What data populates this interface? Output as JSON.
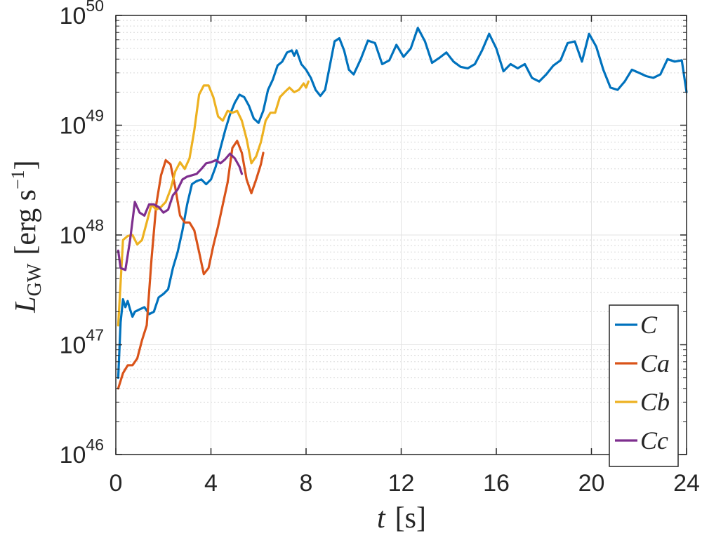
{
  "chart_data": {
    "type": "line",
    "title": "",
    "xlabel": {
      "var": "t",
      "unit": "[s]"
    },
    "ylabel": {
      "var": "L",
      "sub": "GW",
      "unit_open": "[erg s",
      "unit_exp": "−1",
      "unit_close": "]"
    },
    "xlim": [
      0,
      24
    ],
    "ylim": [
      1e+46,
      1e+50
    ],
    "yscale": "log",
    "grid": true,
    "minor_grid": true,
    "legend_position": "bottom-right",
    "x_ticks": [
      "0",
      "4",
      "8",
      "12",
      "16",
      "20",
      "24"
    ],
    "y_ticks": [
      {
        "base": "10",
        "exp": "50"
      },
      {
        "base": "10",
        "exp": "49"
      },
      {
        "base": "10",
        "exp": "48"
      },
      {
        "base": "10",
        "exp": "47"
      },
      {
        "base": "10",
        "exp": "46"
      }
    ],
    "series": [
      {
        "name": "C",
        "color": "#0072BD",
        "points": [
          [
            0.1,
            5e+46
          ],
          [
            0.2,
            1.6e+47
          ],
          [
            0.3,
            2.6e+47
          ],
          [
            0.4,
            2.2e+47
          ],
          [
            0.5,
            2.5e+47
          ],
          [
            0.6,
            2.1e+47
          ],
          [
            0.7,
            1.8e+47
          ],
          [
            0.8,
            2e+47
          ],
          [
            1.0,
            2.1e+47
          ],
          [
            1.2,
            2.2e+47
          ],
          [
            1.4,
            1.9e+47
          ],
          [
            1.6,
            2e+47
          ],
          [
            1.8,
            2.7e+47
          ],
          [
            2.0,
            2.9e+47
          ],
          [
            2.2,
            3.2e+47
          ],
          [
            2.4,
            5e+47
          ],
          [
            2.6,
            7e+47
          ],
          [
            2.8,
            1.1e+48
          ],
          [
            3.0,
            1.9e+48
          ],
          [
            3.2,
            2.9e+48
          ],
          [
            3.4,
            3.1e+48
          ],
          [
            3.6,
            3.2e+48
          ],
          [
            3.8,
            2.9e+48
          ],
          [
            4.0,
            3.2e+48
          ],
          [
            4.2,
            4.2e+48
          ],
          [
            4.4,
            6.2e+48
          ],
          [
            4.6,
            9e+48
          ],
          [
            4.8,
            1.25e+49
          ],
          [
            5.0,
            1.6e+49
          ],
          [
            5.2,
            1.9e+49
          ],
          [
            5.4,
            1.8e+49
          ],
          [
            5.6,
            1.5e+49
          ],
          [
            5.8,
            1.15e+49
          ],
          [
            6.0,
            1.05e+49
          ],
          [
            6.2,
            1.35e+49
          ],
          [
            6.4,
            2.1e+49
          ],
          [
            6.6,
            2.6e+49
          ],
          [
            6.8,
            3.5e+49
          ],
          [
            7.0,
            3.8e+49
          ],
          [
            7.2,
            4.6e+49
          ],
          [
            7.4,
            4.8e+49
          ],
          [
            7.5,
            4.3e+49
          ],
          [
            7.6,
            4.8e+49
          ],
          [
            7.8,
            3.6e+49
          ],
          [
            8.0,
            3.2e+49
          ],
          [
            8.2,
            2.7e+49
          ],
          [
            8.4,
            2.1e+49
          ],
          [
            8.6,
            1.85e+49
          ],
          [
            8.8,
            2.1e+49
          ],
          [
            9.0,
            3.5e+49
          ],
          [
            9.2,
            5.8e+49
          ],
          [
            9.4,
            6.2e+49
          ],
          [
            9.6,
            4.8e+49
          ],
          [
            9.8,
            3.2e+49
          ],
          [
            10.0,
            2.9e+49
          ],
          [
            10.3,
            4e+49
          ],
          [
            10.6,
            5.9e+49
          ],
          [
            10.9,
            5.6e+49
          ],
          [
            11.2,
            3.6e+49
          ],
          [
            11.5,
            3.9e+49
          ],
          [
            11.8,
            5.4e+49
          ],
          [
            12.1,
            4.2e+49
          ],
          [
            12.4,
            5e+49
          ],
          [
            12.7,
            7.7e+49
          ],
          [
            13.0,
            5.8e+49
          ],
          [
            13.3,
            3.7e+49
          ],
          [
            13.6,
            4.1e+49
          ],
          [
            13.9,
            4.6e+49
          ],
          [
            14.2,
            3.8e+49
          ],
          [
            14.5,
            3.4e+49
          ],
          [
            14.8,
            3.3e+49
          ],
          [
            15.1,
            3.6e+49
          ],
          [
            15.4,
            4.8e+49
          ],
          [
            15.7,
            6.8e+49
          ],
          [
            16.0,
            5e+49
          ],
          [
            16.3,
            3.1e+49
          ],
          [
            16.6,
            3.6e+49
          ],
          [
            16.9,
            3.3e+49
          ],
          [
            17.2,
            3.6e+49
          ],
          [
            17.5,
            2.7e+49
          ],
          [
            17.8,
            2.5e+49
          ],
          [
            18.1,
            2.9e+49
          ],
          [
            18.4,
            3.5e+49
          ],
          [
            18.7,
            3.9e+49
          ],
          [
            19.0,
            5.6e+49
          ],
          [
            19.3,
            5.8e+49
          ],
          [
            19.6,
            3.8e+49
          ],
          [
            19.9,
            6.8e+49
          ],
          [
            20.2,
            5.2e+49
          ],
          [
            20.5,
            3.2e+49
          ],
          [
            20.8,
            2.2e+49
          ],
          [
            21.1,
            2.1e+49
          ],
          [
            21.4,
            2.5e+49
          ],
          [
            21.7,
            3.2e+49
          ],
          [
            22.0,
            3e+49
          ],
          [
            22.3,
            2.8e+49
          ],
          [
            22.6,
            2.7e+49
          ],
          [
            22.9,
            2.9e+49
          ],
          [
            23.2,
            4e+49
          ],
          [
            23.5,
            3.8e+49
          ],
          [
            23.8,
            3.9e+49
          ],
          [
            24.0,
            2e+49
          ]
        ]
      },
      {
        "name": "Ca",
        "color": "#D95319",
        "points": [
          [
            0.1,
            4e+46
          ],
          [
            0.3,
            5.5e+46
          ],
          [
            0.5,
            6.5e+46
          ],
          [
            0.7,
            6.5e+46
          ],
          [
            0.9,
            7.5e+46
          ],
          [
            1.1,
            1.1e+47
          ],
          [
            1.3,
            1.5e+47
          ],
          [
            1.5,
            6e+47
          ],
          [
            1.7,
            1.9e+48
          ],
          [
            1.9,
            3.5e+48
          ],
          [
            2.1,
            4.8e+48
          ],
          [
            2.3,
            4.4e+48
          ],
          [
            2.5,
            2.7e+48
          ],
          [
            2.7,
            1.5e+48
          ],
          [
            2.9,
            1.3e+48
          ],
          [
            3.1,
            1.3e+48
          ],
          [
            3.3,
            1.1e+48
          ],
          [
            3.5,
            7e+47
          ],
          [
            3.7,
            4.4e+47
          ],
          [
            3.9,
            5e+47
          ],
          [
            4.1,
            8e+47
          ],
          [
            4.3,
            1.2e+48
          ],
          [
            4.5,
            1.9e+48
          ],
          [
            4.7,
            3e+48
          ],
          [
            4.9,
            6.2e+48
          ],
          [
            5.1,
            7.2e+48
          ],
          [
            5.3,
            5.6e+48
          ],
          [
            5.5,
            3.2e+48
          ],
          [
            5.7,
            2.4e+48
          ],
          [
            5.9,
            3.2e+48
          ],
          [
            6.1,
            4.4e+48
          ],
          [
            6.2,
            5.6e+48
          ]
        ]
      },
      {
        "name": "Cb",
        "color": "#EDB120",
        "points": [
          [
            0.1,
            1.5e+47
          ],
          [
            0.3,
            9e+47
          ],
          [
            0.5,
            9.8e+47
          ],
          [
            0.7,
            1e+48
          ],
          [
            0.9,
            8.2e+47
          ],
          [
            1.1,
            9e+47
          ],
          [
            1.3,
            1.3e+48
          ],
          [
            1.5,
            1.9e+48
          ],
          [
            1.7,
            1.7e+48
          ],
          [
            1.9,
            1.8e+48
          ],
          [
            2.1,
            2e+48
          ],
          [
            2.3,
            2.6e+48
          ],
          [
            2.5,
            3.8e+48
          ],
          [
            2.7,
            4.6e+48
          ],
          [
            2.9,
            4e+48
          ],
          [
            3.1,
            5e+48
          ],
          [
            3.3,
            9e+48
          ],
          [
            3.5,
            1.9e+49
          ],
          [
            3.7,
            2.3e+49
          ],
          [
            3.9,
            2.3e+49
          ],
          [
            4.1,
            1.8e+49
          ],
          [
            4.3,
            1.2e+49
          ],
          [
            4.5,
            1.1e+49
          ],
          [
            4.7,
            1.35e+49
          ],
          [
            4.9,
            1.3e+49
          ],
          [
            5.1,
            1.35e+49
          ],
          [
            5.3,
            1.1e+49
          ],
          [
            5.5,
            7.5e+48
          ],
          [
            5.7,
            4.5e+48
          ],
          [
            5.9,
            5.2e+48
          ],
          [
            6.1,
            7e+48
          ],
          [
            6.3,
            1.1e+49
          ],
          [
            6.5,
            1.3e+49
          ],
          [
            6.7,
            1.3e+49
          ],
          [
            6.9,
            1.8e+49
          ],
          [
            7.1,
            2e+49
          ],
          [
            7.3,
            2.2e+49
          ],
          [
            7.5,
            2e+49
          ],
          [
            7.7,
            2.1e+49
          ],
          [
            7.9,
            2.4e+49
          ],
          [
            8.0,
            2.2e+49
          ],
          [
            8.1,
            2.5e+49
          ]
        ]
      },
      {
        "name": "Cc",
        "color": "#7E2F8E",
        "points": [
          [
            0.1,
            7.2e+47
          ],
          [
            0.2,
            5e+47
          ],
          [
            0.4,
            4.8e+47
          ],
          [
            0.6,
            9e+47
          ],
          [
            0.8,
            2e+48
          ],
          [
            1.0,
            1.6e+48
          ],
          [
            1.2,
            1.5e+48
          ],
          [
            1.4,
            1.9e+48
          ],
          [
            1.6,
            1.9e+48
          ],
          [
            1.8,
            1.8e+48
          ],
          [
            2.0,
            1.6e+48
          ],
          [
            2.2,
            1.7e+48
          ],
          [
            2.4,
            2.3e+48
          ],
          [
            2.6,
            2.6e+48
          ],
          [
            2.8,
            3.2e+48
          ],
          [
            3.0,
            3.4e+48
          ],
          [
            3.2,
            3.5e+48
          ],
          [
            3.4,
            3.6e+48
          ],
          [
            3.6,
            4e+48
          ],
          [
            3.8,
            4.5e+48
          ],
          [
            4.0,
            4.6e+48
          ],
          [
            4.2,
            4.8e+48
          ],
          [
            4.4,
            4.5e+48
          ],
          [
            4.6,
            4.9e+48
          ],
          [
            4.8,
            5.5e+48
          ],
          [
            5.0,
            5e+48
          ],
          [
            5.2,
            4.2e+48
          ],
          [
            5.3,
            3.6e+48
          ]
        ]
      }
    ]
  }
}
